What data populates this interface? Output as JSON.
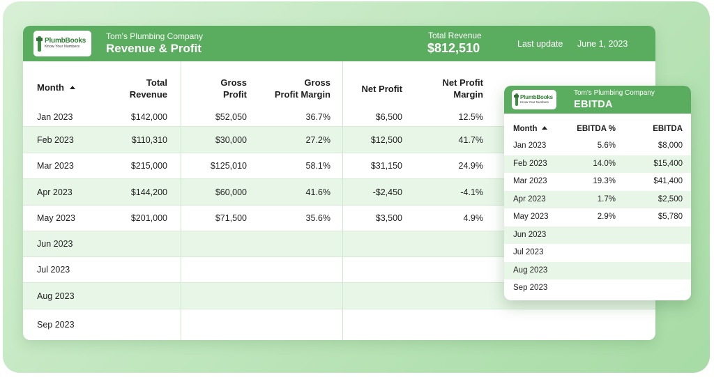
{
  "logo": {
    "name": "PlumbBooks",
    "tagline": "Know Your Numbers"
  },
  "main": {
    "company": "Tom's Plumbing Company",
    "title": "Revenue & Profit",
    "total_revenue_label": "Total Revenue",
    "total_revenue_value": "$812,510",
    "last_update_label": "Last update",
    "last_update_value": "June 1, 2023",
    "columns": {
      "month": "Month",
      "total_revenue": [
        "Total",
        "Revenue"
      ],
      "gross_profit": [
        "Gross",
        "Profit"
      ],
      "gross_profit_margin": [
        "Gross",
        "Profit Margin"
      ],
      "net_profit": "Net Profit",
      "net_profit_margin": [
        "Net Profit",
        "Margin"
      ]
    },
    "rows": [
      {
        "month": "Jan 2023",
        "total_revenue": "$142,000",
        "gross_profit": "$52,050",
        "gross_margin": "36.7%",
        "net_profit": "$6,500",
        "net_margin": "12.5%"
      },
      {
        "month": "Feb 2023",
        "total_revenue": "$110,310",
        "gross_profit": "$30,000",
        "gross_margin": "27.2%",
        "net_profit": "$12,500",
        "net_margin": "41.7%"
      },
      {
        "month": "Mar 2023",
        "total_revenue": "$215,000",
        "gross_profit": "$125,010",
        "gross_margin": "58.1%",
        "net_profit": "$31,150",
        "net_margin": "24.9%"
      },
      {
        "month": "Apr 2023",
        "total_revenue": "$144,200",
        "gross_profit": "$60,000",
        "gross_margin": "41.6%",
        "net_profit": "-$2,450",
        "net_margin": "-4.1%"
      },
      {
        "month": "May 2023",
        "total_revenue": "$201,000",
        "gross_profit": "$71,500",
        "gross_margin": "35.6%",
        "net_profit": "$3,500",
        "net_margin": "4.9%"
      },
      {
        "month": "Jun 2023",
        "total_revenue": "",
        "gross_profit": "",
        "gross_margin": "",
        "net_profit": "",
        "net_margin": ""
      },
      {
        "month": "Jul 2023",
        "total_revenue": "",
        "gross_profit": "",
        "gross_margin": "",
        "net_profit": "",
        "net_margin": ""
      },
      {
        "month": "Aug 2023",
        "total_revenue": "",
        "gross_profit": "",
        "gross_margin": "",
        "net_profit": "",
        "net_margin": ""
      },
      {
        "month": "Sep 2023",
        "total_revenue": "",
        "gross_profit": "",
        "gross_margin": "",
        "net_profit": "",
        "net_margin": ""
      }
    ]
  },
  "ebitda": {
    "company": "Tom's Plumbing Company",
    "title": "EBITDA",
    "columns": {
      "month": "Month",
      "ebitda_pct": "EBITDA %",
      "ebitda": "EBITDA"
    },
    "rows": [
      {
        "month": "Jan 2023",
        "ebitda_pct": "5.6%",
        "ebitda": "$8,000"
      },
      {
        "month": "Feb 2023",
        "ebitda_pct": "14.0%",
        "ebitda": "$15,400"
      },
      {
        "month": "Mar 2023",
        "ebitda_pct": "19.3%",
        "ebitda": "$41,400"
      },
      {
        "month": "Apr 2023",
        "ebitda_pct": "1.7%",
        "ebitda": "$2,500"
      },
      {
        "month": "May 2023",
        "ebitda_pct": "2.9%",
        "ebitda": "$5,780"
      },
      {
        "month": "Jun 2023",
        "ebitda_pct": "",
        "ebitda": ""
      },
      {
        "month": "Jul 2023",
        "ebitda_pct": "",
        "ebitda": ""
      },
      {
        "month": "Aug 2023",
        "ebitda_pct": "",
        "ebitda": ""
      },
      {
        "month": "Sep 2023",
        "ebitda_pct": "",
        "ebitda": ""
      }
    ]
  },
  "colors": {
    "header_green": "#5aac5f",
    "row_alt": "#e8f6e7",
    "logo_green": "#2e7d32"
  }
}
